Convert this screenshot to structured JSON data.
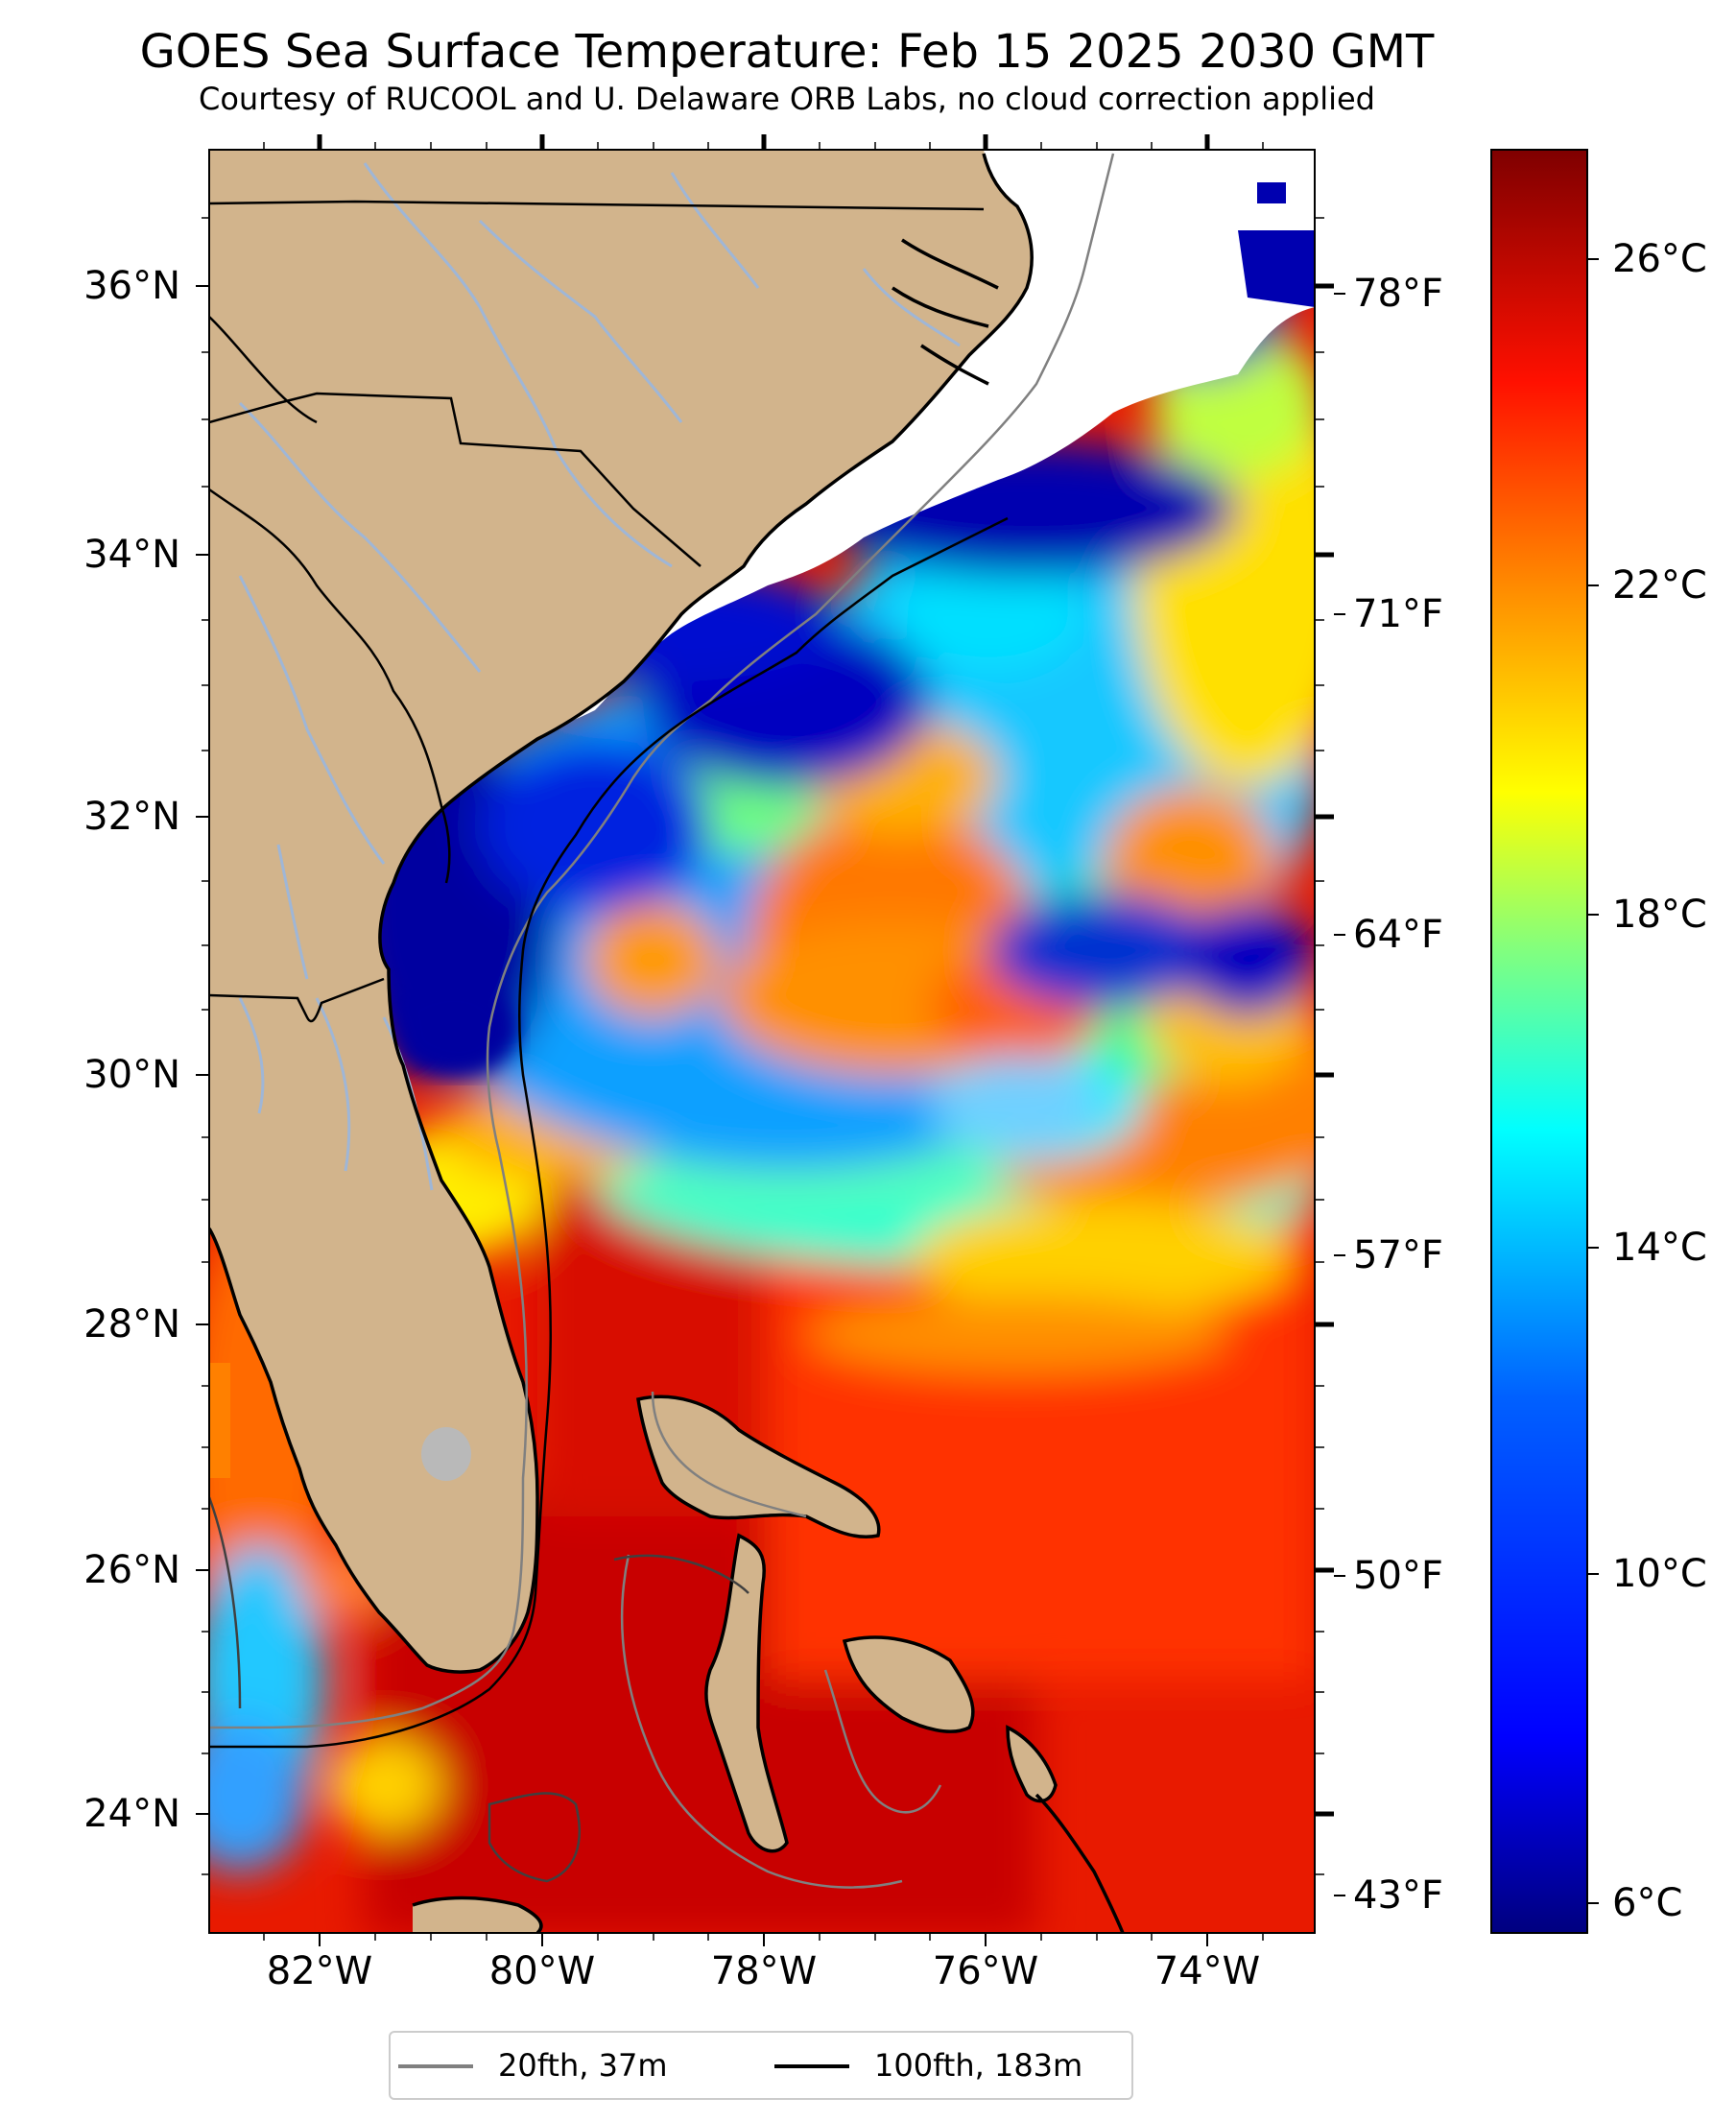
{
  "title": "GOES Sea Surface Temperature: Feb 15 2025 2030 GMT",
  "subtitle": "Courtesy of RUCOOL and U. Delaware ORB Labs, no cloud correction applied",
  "latitude_labels": [
    "36°N",
    "34°N",
    "32°N",
    "30°N",
    "28°N",
    "26°N",
    "24°N"
  ],
  "longitude_labels": [
    "82°W",
    "80°W",
    "78°W",
    "76°W",
    "74°W"
  ],
  "fahrenheit_labels": [
    "78°F",
    "71°F",
    "64°F",
    "57°F",
    "50°F",
    "43°F"
  ],
  "colorbar": {
    "tick_labels": [
      "26°C",
      "22°C",
      "18°C",
      "14°C",
      "10°C",
      "6°C"
    ],
    "range_c": [
      5.5,
      28
    ],
    "colormap": "jet",
    "colors": [
      "#00007f",
      "#0000ff",
      "#007fff",
      "#00ffff",
      "#7fff7f",
      "#ffff00",
      "#ff7f00",
      "#ff0000",
      "#7f0000"
    ]
  },
  "legend": {
    "items": [
      {
        "label": "20fth, 37m",
        "color": "#808080"
      },
      {
        "label": "100fth, 183m",
        "color": "#000000"
      }
    ]
  },
  "map": {
    "extent": {
      "lon": [
        -83,
        -73
      ],
      "lat": [
        23.1,
        37
      ]
    },
    "land_color": "#d2b48c",
    "cloud_color": "#ffffff",
    "river_color": "#9fb6d6",
    "lake_color": "#b9b9b9",
    "icons": [
      "coastline",
      "state-borders",
      "rivers",
      "isobath-20fth",
      "isobath-100fth",
      "bahamas-islands"
    ]
  }
}
